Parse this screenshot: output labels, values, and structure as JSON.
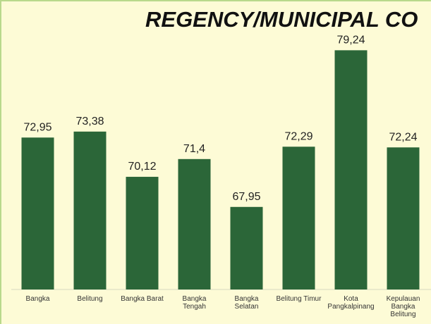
{
  "chart_data": {
    "type": "bar",
    "title": "REGENCY/MUNICIPAL CO",
    "categories": [
      "Bangka",
      "Belitung",
      "Bangka Barat",
      "Bangka\nTengah",
      "Bangka\nSelatan",
      "Belitung Timur",
      "Kota\nPangkalpinang",
      "Kepulauan\nBangka\nBelitung"
    ],
    "values": [
      72.95,
      73.38,
      70.12,
      71.4,
      67.95,
      72.29,
      79.24,
      72.24
    ],
    "value_labels": [
      "72,95",
      "73,38",
      "70,12",
      "71,4",
      "67,95",
      "72,29",
      "79,24",
      "72,24"
    ],
    "color": "#2b6638",
    "ylim": [
      62,
      82
    ]
  }
}
